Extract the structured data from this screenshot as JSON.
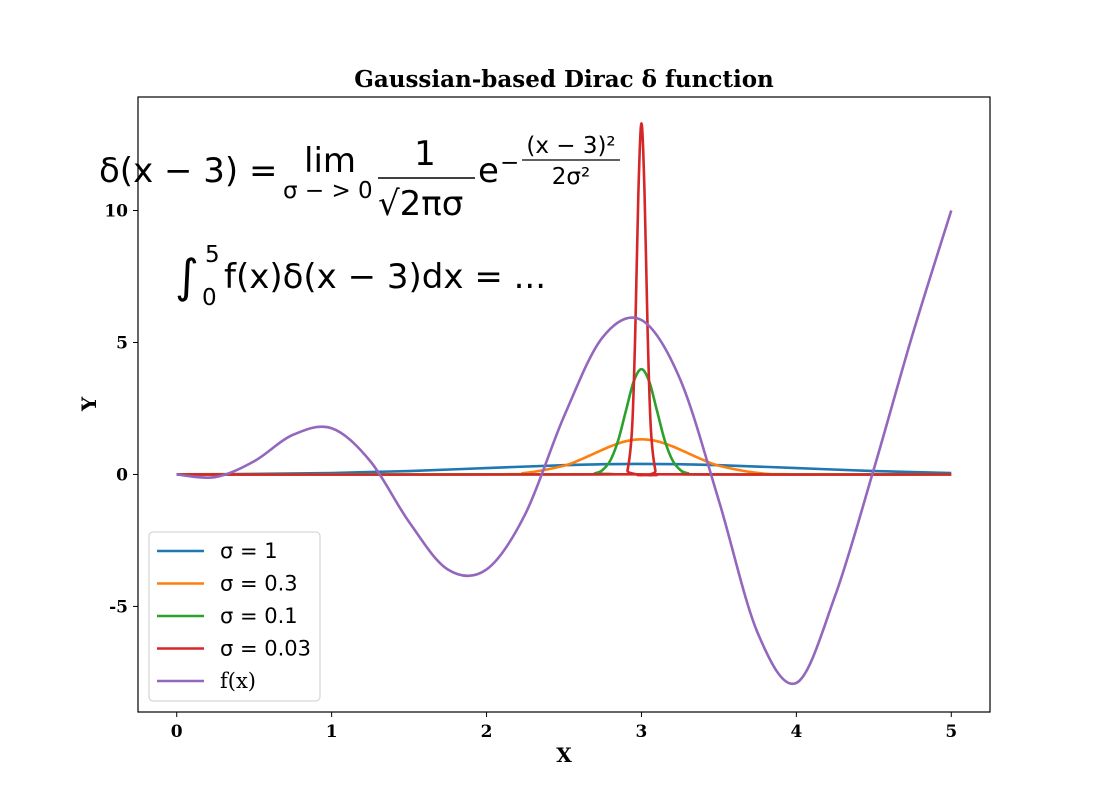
{
  "chart_data": {
    "type": "line",
    "title": "Gaussian-based Dirac δ function",
    "xlabel": "X",
    "ylabel": "Y",
    "xlim": [
      -0.25,
      5.25
    ],
    "ylim": [
      -9.0,
      14.3
    ],
    "xticks": [
      0,
      1,
      2,
      3,
      4,
      5
    ],
    "xtick_labels": [
      "0",
      "1",
      "2",
      "3",
      "4",
      "5"
    ],
    "yticks": [
      -5,
      0,
      5,
      10
    ],
    "ytick_labels": [
      "-5",
      "0",
      "5",
      "10"
    ],
    "grid": false,
    "legend_position": "lower-left",
    "series": [
      {
        "name": "σ = 1",
        "color": "#1f77b4",
        "x": [
          0,
          0.5,
          1,
          1.5,
          2,
          2.5,
          2.75,
          3,
          3.25,
          3.5,
          4,
          4.5,
          5
        ],
        "y": [
          0.004,
          0.018,
          0.054,
          0.13,
          0.242,
          0.352,
          0.387,
          0.399,
          0.387,
          0.352,
          0.242,
          0.13,
          0.054
        ]
      },
      {
        "name": "σ = 0.3",
        "color": "#ff7f0e",
        "x": [
          0,
          2,
          2.25,
          2.5,
          2.6,
          2.7,
          2.8,
          2.9,
          3,
          3.1,
          3.2,
          3.3,
          3.4,
          3.5,
          3.75,
          4,
          5
        ],
        "y": [
          0,
          0.005,
          0.058,
          0.331,
          0.547,
          0.807,
          1.064,
          1.26,
          1.33,
          1.26,
          1.064,
          0.807,
          0.547,
          0.331,
          0.058,
          0.005,
          0
        ]
      },
      {
        "name": "σ = 0.1",
        "color": "#2ca02c",
        "x": [
          0,
          2.6,
          2.7,
          2.75,
          2.8,
          2.85,
          2.9,
          2.95,
          3,
          3.05,
          3.1,
          3.15,
          3.2,
          3.25,
          3.3,
          3.4,
          5
        ],
        "y": [
          0,
          0.001,
          0.044,
          0.175,
          0.54,
          1.295,
          2.42,
          3.521,
          3.989,
          3.521,
          2.42,
          1.295,
          0.54,
          0.175,
          0.044,
          0.001,
          0
        ]
      },
      {
        "name": "σ = 0.03",
        "color": "#d62728",
        "x": [
          0,
          2.88,
          2.91,
          2.94,
          2.96,
          2.98,
          3,
          3.02,
          3.04,
          3.06,
          3.09,
          3.12,
          5
        ],
        "y": [
          0,
          0.004,
          0.15,
          1.8,
          5.39,
          10.65,
          13.3,
          10.65,
          5.39,
          1.8,
          0.15,
          0.004,
          0
        ]
      },
      {
        "name": "f(x)",
        "color": "#9467bd",
        "x": [
          0,
          0.25,
          0.5,
          0.75,
          1,
          1.25,
          1.5,
          1.75,
          2,
          2.25,
          2.5,
          2.75,
          3,
          3.25,
          3.5,
          3.75,
          4,
          4.25,
          4.5,
          4.75,
          5
        ],
        "y": [
          0.0,
          -0.1,
          0.5,
          1.5,
          1.75,
          0.5,
          -1.8,
          -3.6,
          -3.6,
          -1.5,
          2.2,
          5.2,
          5.85,
          3.6,
          -1.0,
          -6.0,
          -7.9,
          -4.6,
          0.2,
          5.3,
          10.0
        ]
      }
    ],
    "annotations": [
      {
        "id": "delta_def",
        "text_lhs": "δ(x − 3) = ",
        "text_lim": "lim",
        "text_sub": "σ − > 0",
        "text_frac_num": "1",
        "text_frac_den": "√2πσ",
        "text_exp_base": "e",
        "text_exp_sign": "−",
        "text_exp_num": "(x − 3)²",
        "text_exp_den": "2σ²"
      },
      {
        "id": "integral",
        "text_int": "∫",
        "text_upper": "5",
        "text_lower": "0",
        "text_body": "f(x)δ(x − 3)dx = ..."
      }
    ]
  }
}
